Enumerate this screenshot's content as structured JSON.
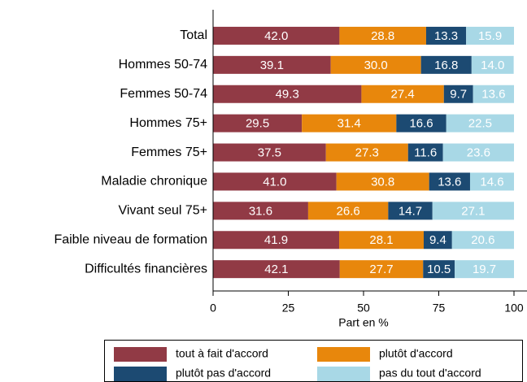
{
  "chart_data": {
    "type": "stacked-bar-horizontal",
    "categories": [
      "Total",
      "Hommes 50-74",
      "Femmes 50-74",
      "Hommes 75+",
      "Femmes 75+",
      "Maladie chronique",
      "Vivant seul 75+",
      "Faible niveau de formation",
      "Difficultés financières"
    ],
    "series": [
      {
        "name": "tout à fait d'accord",
        "color": "#913a45",
        "values": [
          42.0,
          39.1,
          49.3,
          29.5,
          37.5,
          41.0,
          31.6,
          41.9,
          42.1
        ],
        "value_labels": [
          "42.0",
          "39.1",
          "49.3",
          "29.5",
          "37.5",
          "41.0",
          "31.6",
          "41.9",
          "42.1"
        ]
      },
      {
        "name": "plutôt d'accord",
        "color": "#e8870c",
        "values": [
          28.8,
          30.0,
          27.4,
          31.4,
          27.3,
          30.8,
          26.6,
          28.1,
          27.7
        ],
        "value_labels": [
          "28.8",
          "30.0",
          "27.4",
          "31.4",
          "27.3",
          "30.8",
          "26.6",
          "28.1",
          "27.7"
        ]
      },
      {
        "name": "plutôt pas d'accord",
        "color": "#1c4a72",
        "values": [
          13.3,
          16.8,
          9.7,
          16.6,
          11.6,
          13.6,
          14.7,
          9.4,
          10.5
        ],
        "value_labels": [
          "13.3",
          "16.8",
          "9.7",
          "16.6",
          "11.6",
          "13.6",
          "14.7",
          "9.4",
          "10.5"
        ]
      },
      {
        "name": "pas du tout d'accord",
        "color": "#a8d8e6",
        "values": [
          15.9,
          14.0,
          13.6,
          22.5,
          23.6,
          14.6,
          27.1,
          20.6,
          19.7
        ],
        "value_labels": [
          "15.9",
          "14.0",
          "13.6",
          "22.5",
          "23.6",
          "14.6",
          "27.1",
          "20.6",
          "19.7"
        ]
      }
    ],
    "xlabel": "Part en %",
    "xlim": [
      0,
      100
    ],
    "xticks": [
      0,
      25,
      50,
      75,
      100
    ],
    "legend": "bottom"
  }
}
